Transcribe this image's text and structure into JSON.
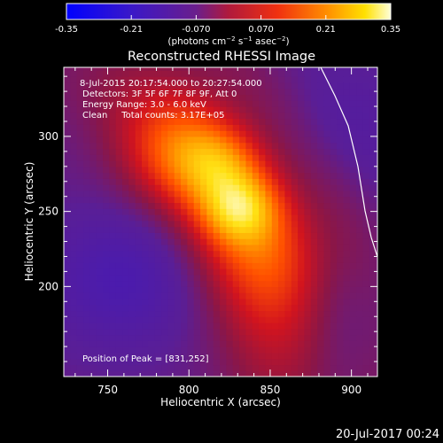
{
  "colorbar": {
    "ticks": [
      "-0.35",
      "-0.21",
      "-0.070",
      "0.070",
      "0.21",
      "0.35"
    ],
    "tick_values": [
      -0.35,
      -0.21,
      -0.07,
      0.07,
      0.21,
      0.35
    ],
    "unit_prefix": "(photons cm",
    "unit_exp1": "−2",
    "unit_mid": " s",
    "unit_exp2": "−1",
    "unit_suffix1": " asec",
    "unit_exp3": "−2",
    "unit_close": ")"
  },
  "chart_data": {
    "type": "heatmap",
    "title": "Reconstructed RHESSI Image",
    "xlabel": "Heliocentric X (arcsec)",
    "ylabel": "Heliocentric Y (arcsec)",
    "xlim": [
      723,
      916
    ],
    "ylim": [
      140,
      346
    ],
    "x_ticks": [
      750,
      800,
      850,
      900
    ],
    "y_ticks": [
      200,
      250,
      300
    ],
    "x_tick_labels": [
      "750",
      "800",
      "850",
      "900"
    ],
    "y_tick_labels": [
      "200",
      "250",
      "300"
    ],
    "zlim": [
      -0.35,
      0.35
    ],
    "colormap": "fire",
    "limb_color": "#ffffff",
    "peak": {
      "x": 831,
      "y": 252
    },
    "annotations": [
      "8-Jul-2015 20:17:54.000 to 20:27:54.000",
      "Detectors: 3F 5F 6F 7F 8F 9F, Att 0",
      "Energy Range: 3.0 - 6.0 keV",
      "Clean     Total counts: 3.17E+05"
    ],
    "peak_label": "Position of Peak = [831,252]"
  },
  "timestamp": "20-Jul-2017 00:24"
}
